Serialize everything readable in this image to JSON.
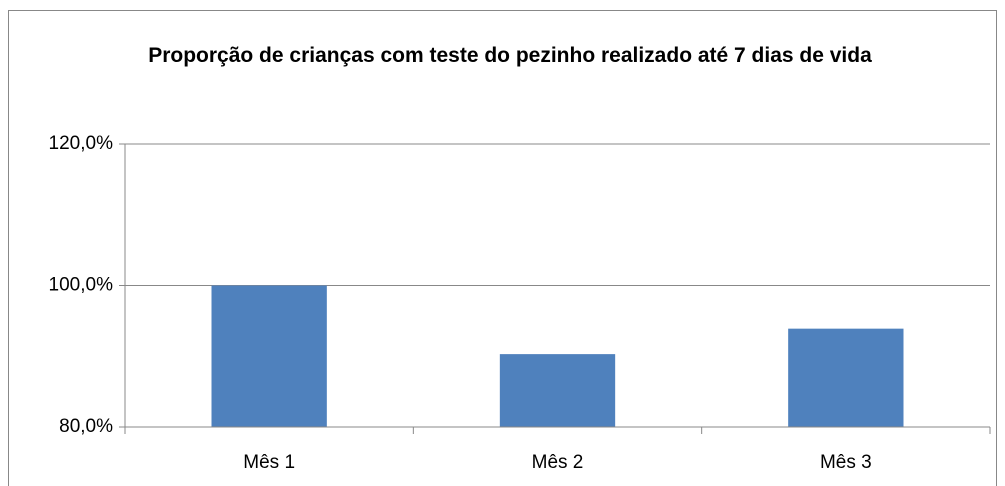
{
  "chart_data": {
    "type": "bar",
    "title": "Proporção de crianças com teste do pezinho realizado até 7 dias de vida",
    "categories": [
      "Mês 1",
      "Mês 2",
      "Mês 3"
    ],
    "values": [
      100,
      90.3,
      93.9
    ],
    "color": "#4f81bd",
    "ylim": [
      80,
      120
    ],
    "yticks": [
      {
        "value": 80,
        "label": "80,0%"
      },
      {
        "value": 100,
        "label": "100,0%"
      },
      {
        "value": 120,
        "label": "120,0%"
      }
    ],
    "grid": true
  }
}
